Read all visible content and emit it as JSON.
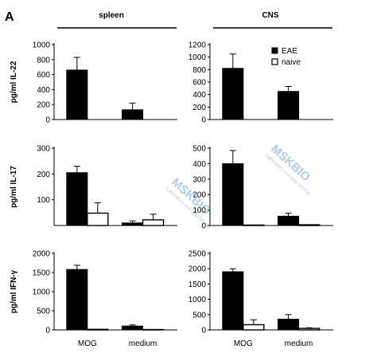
{
  "figure": {
    "panel_letter": "A",
    "columns": [
      "spleen",
      "CNS"
    ]
  },
  "legend": [
    {
      "label": "EAE",
      "fill": "#000000"
    },
    {
      "label": "naive",
      "fill": "#ffffff"
    }
  ],
  "colors": {
    "eae": "#000000",
    "naive": "#ffffff",
    "axis": "#000000",
    "watermark": "#4a8fd6"
  },
  "chart_data": [
    {
      "type": "bar",
      "tissue": "spleen",
      "ylabel": "pg/ml IL-22",
      "categories": [
        "MOG",
        "medium"
      ],
      "ylim": [
        0,
        1000
      ],
      "yticks": [
        0,
        200,
        400,
        600,
        800,
        1000
      ],
      "series": [
        {
          "name": "EAE",
          "values": [
            660,
            130
          ],
          "errors": [
            170,
            90
          ]
        },
        {
          "name": "naive",
          "values": [
            0,
            0
          ],
          "errors": [
            0,
            0
          ]
        }
      ]
    },
    {
      "type": "bar",
      "tissue": "CNS",
      "ylabel": "",
      "categories": [
        "MOG",
        "medium"
      ],
      "ylim": [
        0,
        1200
      ],
      "yticks": [
        0,
        200,
        400,
        600,
        800,
        1000,
        1200
      ],
      "series": [
        {
          "name": "EAE",
          "values": [
            820,
            450
          ],
          "errors": [
            230,
            80
          ]
        },
        {
          "name": "naive",
          "values": [
            0,
            0
          ],
          "errors": [
            0,
            0
          ]
        }
      ]
    },
    {
      "type": "bar",
      "tissue": "spleen",
      "ylabel": "pg/ml IL-17",
      "categories": [
        "MOG",
        "medium"
      ],
      "ylim": [
        0,
        300
      ],
      "yticks": [
        100,
        200,
        300
      ],
      "series": [
        {
          "name": "EAE",
          "values": [
            205,
            10
          ],
          "errors": [
            25,
            8
          ]
        },
        {
          "name": "naive",
          "values": [
            48,
            22
          ],
          "errors": [
            40,
            22
          ]
        }
      ]
    },
    {
      "type": "bar",
      "tissue": "CNS",
      "ylabel": "",
      "categories": [
        "MOG",
        "medium"
      ],
      "ylim": [
        0,
        500
      ],
      "yticks": [
        0,
        100,
        200,
        300,
        400,
        500
      ],
      "series": [
        {
          "name": "EAE",
          "values": [
            400,
            60
          ],
          "errors": [
            85,
            20
          ]
        },
        {
          "name": "naive",
          "values": [
            3,
            5
          ],
          "errors": [
            0,
            0
          ]
        }
      ]
    },
    {
      "type": "bar",
      "tissue": "spleen",
      "ylabel": "pg/ml IFN-γ",
      "categories": [
        "MOG",
        "medium"
      ],
      "ylim": [
        0,
        2000
      ],
      "yticks": [
        0,
        500,
        1000,
        1500,
        2000
      ],
      "series": [
        {
          "name": "EAE",
          "values": [
            1580,
            100
          ],
          "errors": [
            110,
            30
          ]
        },
        {
          "name": "naive",
          "values": [
            15,
            10
          ],
          "errors": [
            0,
            0
          ]
        }
      ]
    },
    {
      "type": "bar",
      "tissue": "CNS",
      "ylabel": "",
      "categories": [
        "MOG",
        "medium"
      ],
      "ylim": [
        0,
        2500
      ],
      "yticks": [
        0,
        500,
        1000,
        1500,
        2000,
        2500
      ],
      "series": [
        {
          "name": "EAE",
          "values": [
            1900,
            350
          ],
          "errors": [
            100,
            150
          ]
        },
        {
          "name": "naive",
          "values": [
            170,
            50
          ],
          "errors": [
            160,
            20
          ]
        }
      ]
    }
  ]
}
